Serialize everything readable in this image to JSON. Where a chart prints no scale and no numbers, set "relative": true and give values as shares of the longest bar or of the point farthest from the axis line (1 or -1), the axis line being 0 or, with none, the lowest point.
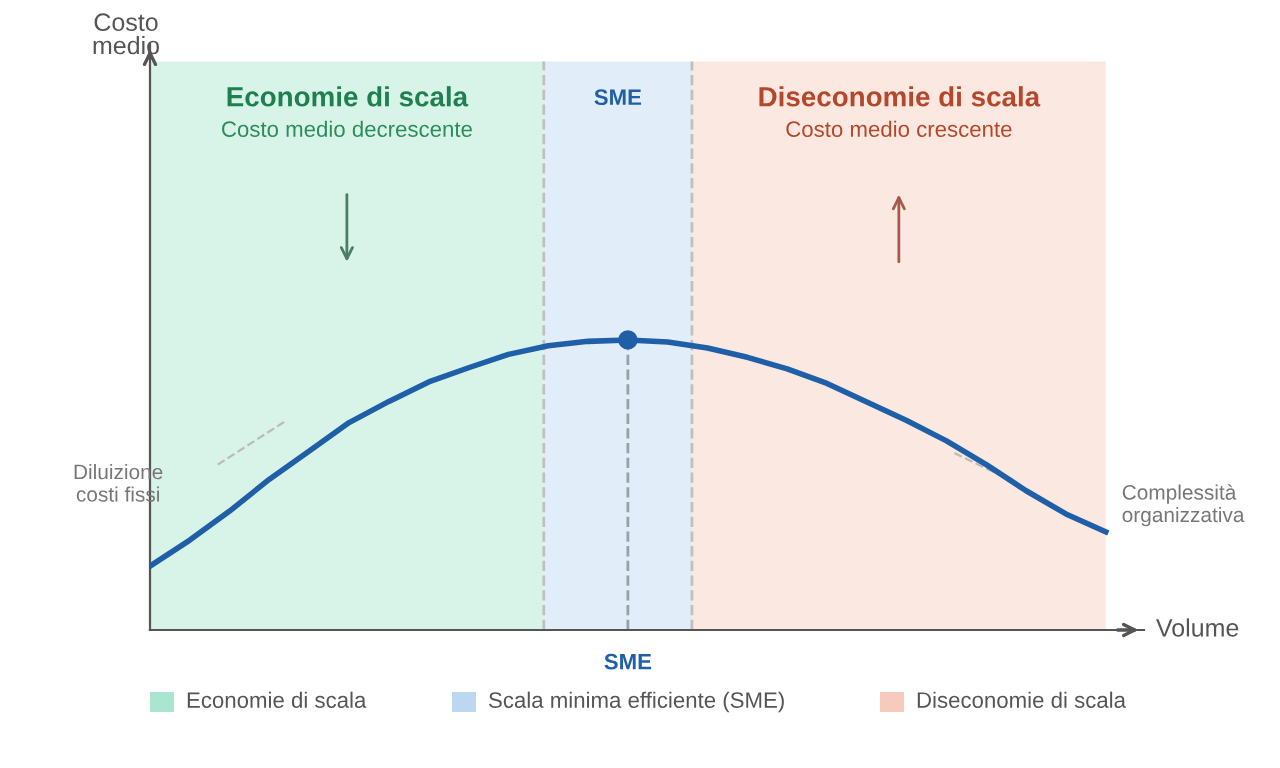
{
  "chart_data": {
    "type": "line",
    "relative": true,
    "xlabel": "Volume",
    "categories": [
      null,
      null,
      null,
      null,
      null,
      null,
      null,
      null,
      null,
      null,
      null,
      null,
      null,
      null,
      null,
      null,
      null,
      null,
      null,
      null,
      null,
      null,
      null,
      null,
      null
    ],
    "series": [
      {
        "color": "#1f5fa8",
        "values": [
          0.22,
          0.31,
          0.41,
          0.52,
          0.617,
          0.715,
          0.788,
          0.855,
          0.904,
          0.95,
          0.98,
          0.995,
          1.0,
          0.993,
          0.972,
          0.94,
          0.9,
          0.85,
          0.786,
          0.722,
          0.652,
          0.57,
          0.48,
          0.4,
          0.338
        ]
      }
    ],
    "annotations": [
      "Economie di scala",
      "Costo medio decrescente",
      "SME",
      "Diseconomie di scala",
      "Costo medio crescente",
      "Diluizione\ncosti fissi",
      "Complessità\norganizzativa",
      "SME",
      "Costo\nmedio",
      "Economie di scala",
      "Scala minima efficiente (SME)",
      "Diseconomie di scala"
    ],
    "grid": false,
    "line_style": "solid",
    "marker": "none"
  }
}
